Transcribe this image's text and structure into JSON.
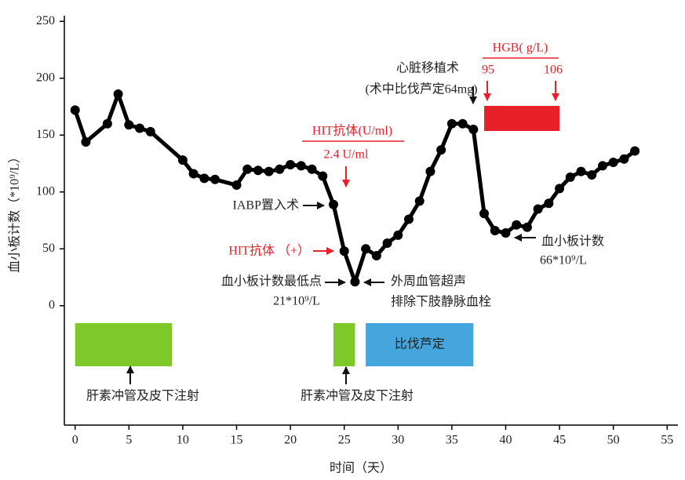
{
  "chart_data": {
    "type": "line",
    "xlabel": "时间（天）",
    "ylabel": "血小板计数（*10⁹/L）",
    "x": [
      0,
      1,
      3,
      4,
      5,
      6,
      7,
      10,
      11,
      12,
      13,
      15,
      16,
      17,
      18,
      19,
      20,
      21,
      22,
      23,
      24,
      25,
      26,
      27,
      28,
      29,
      30,
      31,
      32,
      33,
      34,
      35,
      36,
      37,
      38,
      39,
      40,
      41,
      42,
      43,
      44,
      45,
      46,
      47,
      48,
      49,
      50,
      51,
      52
    ],
    "series": [
      {
        "color": "#000000",
        "values": [
          172,
          144,
          160,
          186,
          159,
          156,
          153,
          128,
          116,
          112,
          111,
          106,
          120,
          119,
          118,
          120,
          124,
          123,
          120,
          114,
          89,
          48,
          21,
          50,
          44,
          55,
          62,
          76,
          92,
          118,
          137,
          160,
          160,
          155,
          81,
          66,
          64,
          71,
          69,
          85,
          90,
          103,
          113,
          118,
          115,
          123,
          126,
          129,
          136
        ]
      }
    ],
    "xlim": [
      -1,
      56
    ],
    "ylim": [
      -105,
      255
    ],
    "xticks": [
      0,
      5,
      10,
      15,
      20,
      25,
      30,
      35,
      40,
      45,
      50,
      55
    ],
    "yticks": [
      0,
      50,
      100,
      150,
      200,
      250
    ],
    "periods": [
      {
        "start": 0,
        "end": 9,
        "color": "#7ec82a",
        "label": "肝素冲管及皮下注射"
      },
      {
        "start": 24,
        "end": 26,
        "color": "#7ec82a",
        "label": "肝素冲管及皮下注射"
      },
      {
        "start": 27,
        "end": 37,
        "color": "#44a6dc",
        "label": "比伐芦定"
      },
      {
        "start": 38,
        "end": 45,
        "color": "#e8202a",
        "label": "HGB( g/L)",
        "values": [
          95,
          106
        ]
      }
    ],
    "annotations": {
      "hit_title": "HIT抗体(U/ml)",
      "hit_value": "2.4 U/ml",
      "transplant": [
        "心脏移植术",
        "(术中比伐芦定64mg)"
      ],
      "iabp": "IABP置入术",
      "hit_positive": "HIT抗体 （+）",
      "lowest": [
        "血小板计数最低点",
        "21*10⁹/L"
      ],
      "ultrasound": [
        "外周血管超声",
        "排除下肢静脉血栓"
      ],
      "platelet": [
        "血小板计数",
        "66*10⁹/L"
      ]
    }
  }
}
